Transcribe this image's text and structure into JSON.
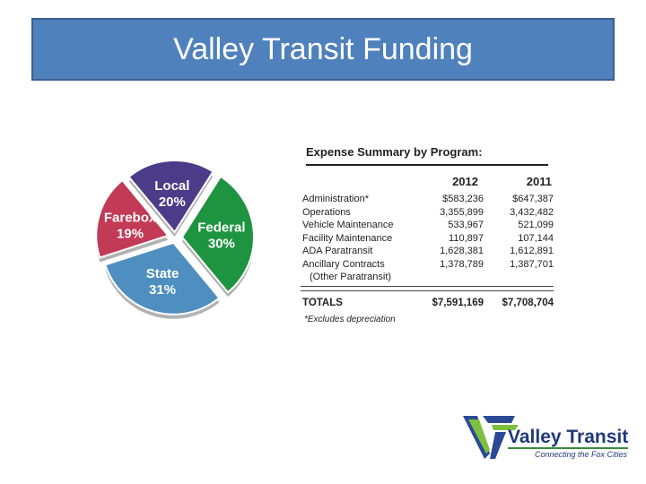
{
  "title": "Valley Transit Funding",
  "chart_data": {
    "type": "pie",
    "slices": [
      {
        "name": "Local",
        "value": 20,
        "label": "20%",
        "color": "#4b3c8a"
      },
      {
        "name": "Federal",
        "value": 30,
        "label": "30%",
        "color": "#1f9440"
      },
      {
        "name": "State",
        "value": 31,
        "label": "31%",
        "color": "#4f8fc0"
      },
      {
        "name": "Farebox",
        "value": 19,
        "label": "19%",
        "color": "#c23a55"
      }
    ]
  },
  "table": {
    "heading": "Expense Summary by Program:",
    "col_2012": "2012",
    "col_2011": "2011",
    "rows": [
      {
        "label": "Administration*",
        "v2012": "$583,236",
        "v2011": "$647,387"
      },
      {
        "label": "Operations",
        "v2012": "3,355,899",
        "v2011": "3,432,482"
      },
      {
        "label": "Vehicle Maintenance",
        "v2012": "533,967",
        "v2011": "521,099"
      },
      {
        "label": "Facility Maintenance",
        "v2012": "110,897",
        "v2011": "107,144"
      },
      {
        "label": "ADA Paratransit",
        "v2012": "1,628,381",
        "v2011": "1,612,891"
      },
      {
        "label": "Ancillary Contracts",
        "v2012": "1,378,789",
        "v2011": "1,387,701"
      },
      {
        "label": "(Other Paratransit)",
        "v2012": "",
        "v2011": ""
      }
    ],
    "totals": {
      "label": "TOTALS",
      "v2012": "$7,591,169",
      "v2011": "$7,708,704"
    },
    "note": "*Excludes depreciation"
  },
  "logo": {
    "name": "Valley Transit",
    "tagline": "Connecting the Fox Cities"
  }
}
